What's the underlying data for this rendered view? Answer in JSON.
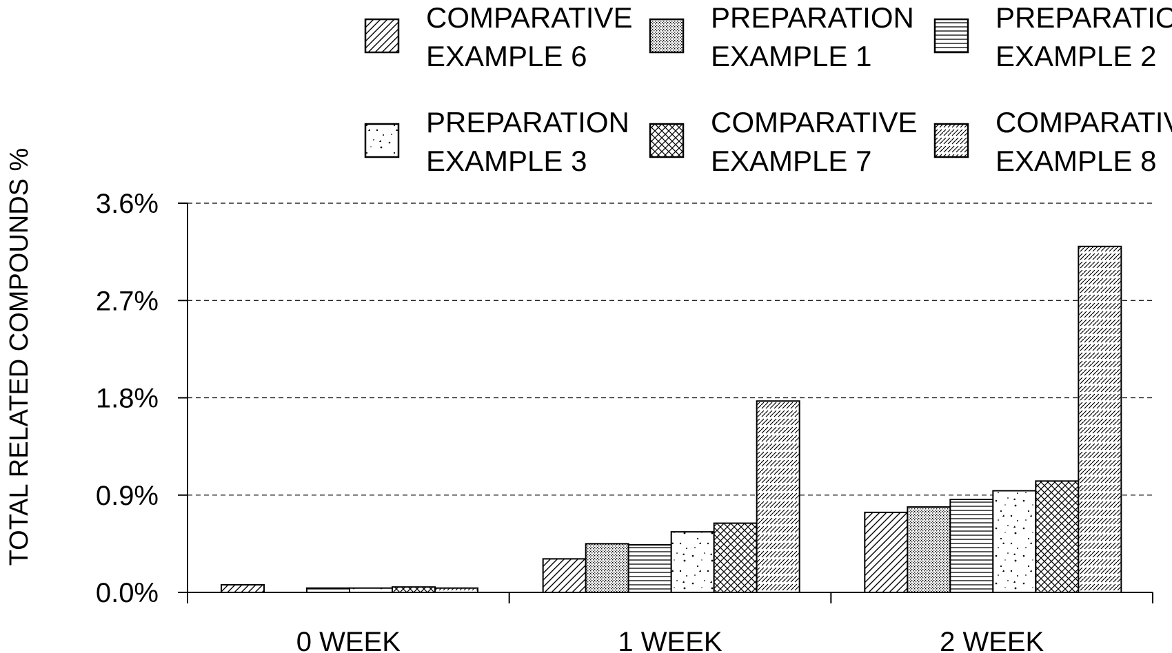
{
  "chart_data": {
    "type": "bar",
    "title": "",
    "xlabel": "",
    "ylabel": "TOTAL  RELATED COMPOUNDS %",
    "ylim": [
      0,
      3.6
    ],
    "yticks": [
      0.0,
      0.9,
      1.8,
      2.7,
      3.6
    ],
    "ytick_labels": [
      "0.0%",
      "0.9%",
      "1.8%",
      "2.7%",
      "3.6%"
    ],
    "grid": "horizontal dashed",
    "legend_position": "top",
    "categories": [
      "0 WEEK",
      "1 WEEK",
      "2 WEEK"
    ],
    "series": [
      {
        "name_line1": "COMPARATIVE",
        "name_line2": "EXAMPLE 6",
        "pattern": "diag-lr",
        "values": [
          0.07,
          0.31,
          0.74
        ]
      },
      {
        "name_line1": "PREPARATION",
        "name_line2": "EXAMPLE 1",
        "pattern": "fine-dots",
        "values": [
          0.0,
          0.45,
          0.79
        ]
      },
      {
        "name_line1": "PREPARATION",
        "name_line2": "EXAMPLE 2",
        "pattern": "horizontal",
        "values": [
          0.04,
          0.44,
          0.86
        ]
      },
      {
        "name_line1": "PREPARATION",
        "name_line2": "EXAMPLE 3",
        "pattern": "speckle",
        "values": [
          0.04,
          0.56,
          0.94
        ]
      },
      {
        "name_line1": "COMPARATIVE",
        "name_line2": "EXAMPLE 7",
        "pattern": "crosshatch",
        "values": [
          0.05,
          0.64,
          1.03
        ]
      },
      {
        "name_line1": "COMPARATIVE",
        "name_line2": "EXAMPLE 8",
        "pattern": "diag-dashed",
        "values": [
          0.04,
          1.77,
          3.2
        ]
      }
    ]
  }
}
